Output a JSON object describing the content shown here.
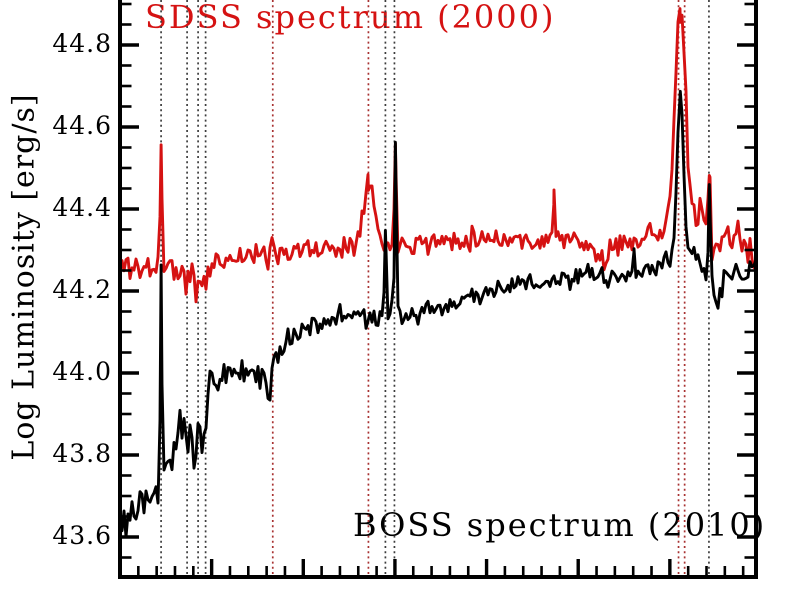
{
  "figure": {
    "title": "",
    "sdss_label": "SDSS spectrum (2000)",
    "boss_label": "BOSS spectrum (2010)"
  },
  "chart_data": {
    "type": "line",
    "title": "",
    "xlabel": "",
    "ylabel": "Log Luminosity [erg/s]",
    "x_axis_labels_visible": false,
    "ylim": [
      43.55,
      44.91
    ],
    "grid": false,
    "legend_position": "in-plot text labels (SDSS top-left red, BOSS bottom-right black)",
    "y_ticks": [
      {
        "label": "44.8",
        "value": 44.8
      },
      {
        "label": "44.6",
        "value": 44.6
      },
      {
        "label": "44.4",
        "value": 44.4
      },
      {
        "label": "44.2",
        "value": 44.2
      },
      {
        "label": "44.0",
        "value": 44.0
      },
      {
        "label": "43.8",
        "value": 43.8
      },
      {
        "label": "43.6",
        "value": 43.6
      }
    ],
    "y_minor_step": 0.05,
    "x_minor_tick_count": 34,
    "x_major_tick_every": 5,
    "colors": {
      "sdss": "#d51212",
      "boss": "#000000",
      "guide_red": "#a83232",
      "guide_dark": "#3c3c3c",
      "axis": "#000000"
    },
    "guide_lines": [
      {
        "u": 0.0646,
        "color_key": "guide_dark"
      },
      {
        "u": 0.1055,
        "color_key": "guide_dark"
      },
      {
        "u": 0.1228,
        "color_key": "guide_dark"
      },
      {
        "u": 0.1346,
        "color_key": "guide_dark"
      },
      {
        "u": 0.2402,
        "color_key": "guide_red"
      },
      {
        "u": 0.3906,
        "color_key": "guide_red"
      },
      {
        "u": 0.4173,
        "color_key": "guide_dark"
      },
      {
        "u": 0.4315,
        "color_key": "guide_dark"
      },
      {
        "u": 0.8782,
        "color_key": "guide_red"
      },
      {
        "u": 0.8878,
        "color_key": "guide_red"
      },
      {
        "u": 0.926,
        "color_key": "guide_dark"
      }
    ],
    "series": [
      {
        "name": "SDSS spectrum (2000)",
        "color_key": "sdss",
        "seed": 11,
        "linewidth": 2.9,
        "noise_segments": [
          [
            0,
            0.15,
            0.02
          ],
          [
            0.15,
            0.55,
            0.014
          ],
          [
            0.55,
            0.86,
            0.013
          ],
          [
            0.86,
            0.906,
            0.018
          ],
          [
            0.906,
            1.0,
            0.026
          ]
        ],
        "anchors": [
          [
            0.0,
            44.25
          ],
          [
            0.012,
            44.27
          ],
          [
            0.03,
            44.25
          ],
          [
            0.05,
            44.26
          ],
          [
            0.075,
            44.26
          ],
          [
            0.095,
            44.25
          ],
          [
            0.105,
            44.2
          ],
          [
            0.112,
            44.26
          ],
          [
            0.119,
            44.19
          ],
          [
            0.127,
            44.24
          ],
          [
            0.134,
            44.21
          ],
          [
            0.145,
            44.27
          ],
          [
            0.17,
            44.28
          ],
          [
            0.21,
            44.29
          ],
          [
            0.232,
            44.28
          ],
          [
            0.24,
            44.33
          ],
          [
            0.248,
            44.29
          ],
          [
            0.27,
            44.3
          ],
          [
            0.31,
            44.3
          ],
          [
            0.35,
            44.31
          ],
          [
            0.37,
            44.31
          ],
          [
            0.405,
            44.31
          ],
          [
            0.42,
            44.31
          ],
          [
            0.45,
            44.32
          ],
          [
            0.5,
            44.32
          ],
          [
            0.55,
            44.33
          ],
          [
            0.6,
            44.33
          ],
          [
            0.65,
            44.32
          ],
          [
            0.682,
            44.33
          ],
          [
            0.7,
            44.33
          ],
          [
            0.745,
            44.3
          ],
          [
            0.76,
            44.27
          ],
          [
            0.78,
            44.31
          ],
          [
            0.81,
            44.33
          ],
          [
            0.84,
            44.34
          ],
          [
            0.862,
            44.35
          ],
          [
            0.9,
            44.36
          ],
          [
            0.91,
            44.37
          ],
          [
            0.92,
            44.35
          ],
          [
            0.932,
            44.31
          ],
          [
            0.94,
            44.26
          ],
          [
            0.95,
            44.35
          ],
          [
            0.962,
            44.32
          ],
          [
            0.975,
            44.34
          ],
          [
            0.985,
            44.29
          ],
          [
            1.0,
            44.3
          ]
        ],
        "peaks": [
          [
            0.0646,
            0.28,
            0.0015
          ],
          [
            0.3906,
            0.16,
            0.009
          ],
          [
            0.433,
            0.25,
            0.0014
          ],
          [
            0.682,
            0.1,
            0.0013
          ],
          [
            0.881,
            0.52,
            0.0085
          ],
          [
            0.9265,
            0.17,
            0.0015
          ]
        ]
      },
      {
        "name": "BOSS spectrum (2010)",
        "color_key": "boss",
        "seed": 23,
        "linewidth": 2.9,
        "noise_segments": [
          [
            0,
            0.062,
            0.022
          ],
          [
            0.062,
            0.145,
            0.028
          ],
          [
            0.145,
            0.26,
            0.017
          ],
          [
            0.26,
            0.45,
            0.014
          ],
          [
            0.45,
            0.86,
            0.012
          ],
          [
            0.86,
            0.912,
            0.013
          ],
          [
            0.912,
            1.0,
            0.015
          ]
        ],
        "anchors": [
          [
            0.0,
            43.66
          ],
          [
            0.008,
            43.62
          ],
          [
            0.018,
            43.66
          ],
          [
            0.03,
            43.66
          ],
          [
            0.045,
            43.68
          ],
          [
            0.058,
            43.71
          ],
          [
            0.065,
            43.74
          ],
          [
            0.072,
            43.77
          ],
          [
            0.082,
            43.8
          ],
          [
            0.092,
            43.85
          ],
          [
            0.1,
            43.87
          ],
          [
            0.106,
            43.79
          ],
          [
            0.112,
            43.88
          ],
          [
            0.118,
            43.79
          ],
          [
            0.124,
            43.91
          ],
          [
            0.13,
            43.81
          ],
          [
            0.137,
            43.94
          ],
          [
            0.143,
            44.0
          ],
          [
            0.155,
            43.97
          ],
          [
            0.17,
            44.0
          ],
          [
            0.19,
            44.01
          ],
          [
            0.21,
            44.0
          ],
          [
            0.228,
            43.99
          ],
          [
            0.235,
            43.95
          ],
          [
            0.24,
            44.01
          ],
          [
            0.255,
            44.06
          ],
          [
            0.275,
            44.1
          ],
          [
            0.3,
            44.12
          ],
          [
            0.33,
            44.13
          ],
          [
            0.36,
            44.14
          ],
          [
            0.385,
            44.14
          ],
          [
            0.405,
            44.13
          ],
          [
            0.417,
            44.15
          ],
          [
            0.433,
            44.15
          ],
          [
            0.445,
            44.14
          ],
          [
            0.48,
            44.15
          ],
          [
            0.52,
            44.17
          ],
          [
            0.56,
            44.19
          ],
          [
            0.6,
            44.21
          ],
          [
            0.64,
            44.22
          ],
          [
            0.68,
            44.22
          ],
          [
            0.72,
            44.23
          ],
          [
            0.75,
            44.24
          ],
          [
            0.77,
            44.23
          ],
          [
            0.79,
            44.24
          ],
          [
            0.825,
            44.24
          ],
          [
            0.85,
            44.26
          ],
          [
            0.862,
            44.27
          ],
          [
            0.9,
            44.3
          ],
          [
            0.908,
            44.29
          ],
          [
            0.917,
            44.25
          ],
          [
            0.923,
            44.21
          ],
          [
            0.927,
            44.24
          ],
          [
            0.932,
            44.21
          ],
          [
            0.94,
            44.18
          ],
          [
            0.95,
            44.23
          ],
          [
            0.965,
            44.25
          ],
          [
            0.98,
            44.24
          ],
          [
            1.0,
            44.26
          ]
        ],
        "peaks": [
          [
            0.0646,
            0.52,
            0.0012
          ],
          [
            0.4173,
            0.17,
            0.0012
          ],
          [
            0.433,
            0.41,
            0.0012
          ],
          [
            0.808,
            0.06,
            0.0015
          ],
          [
            0.881,
            0.4,
            0.005
          ],
          [
            0.9265,
            0.22,
            0.0013
          ]
        ]
      }
    ]
  }
}
